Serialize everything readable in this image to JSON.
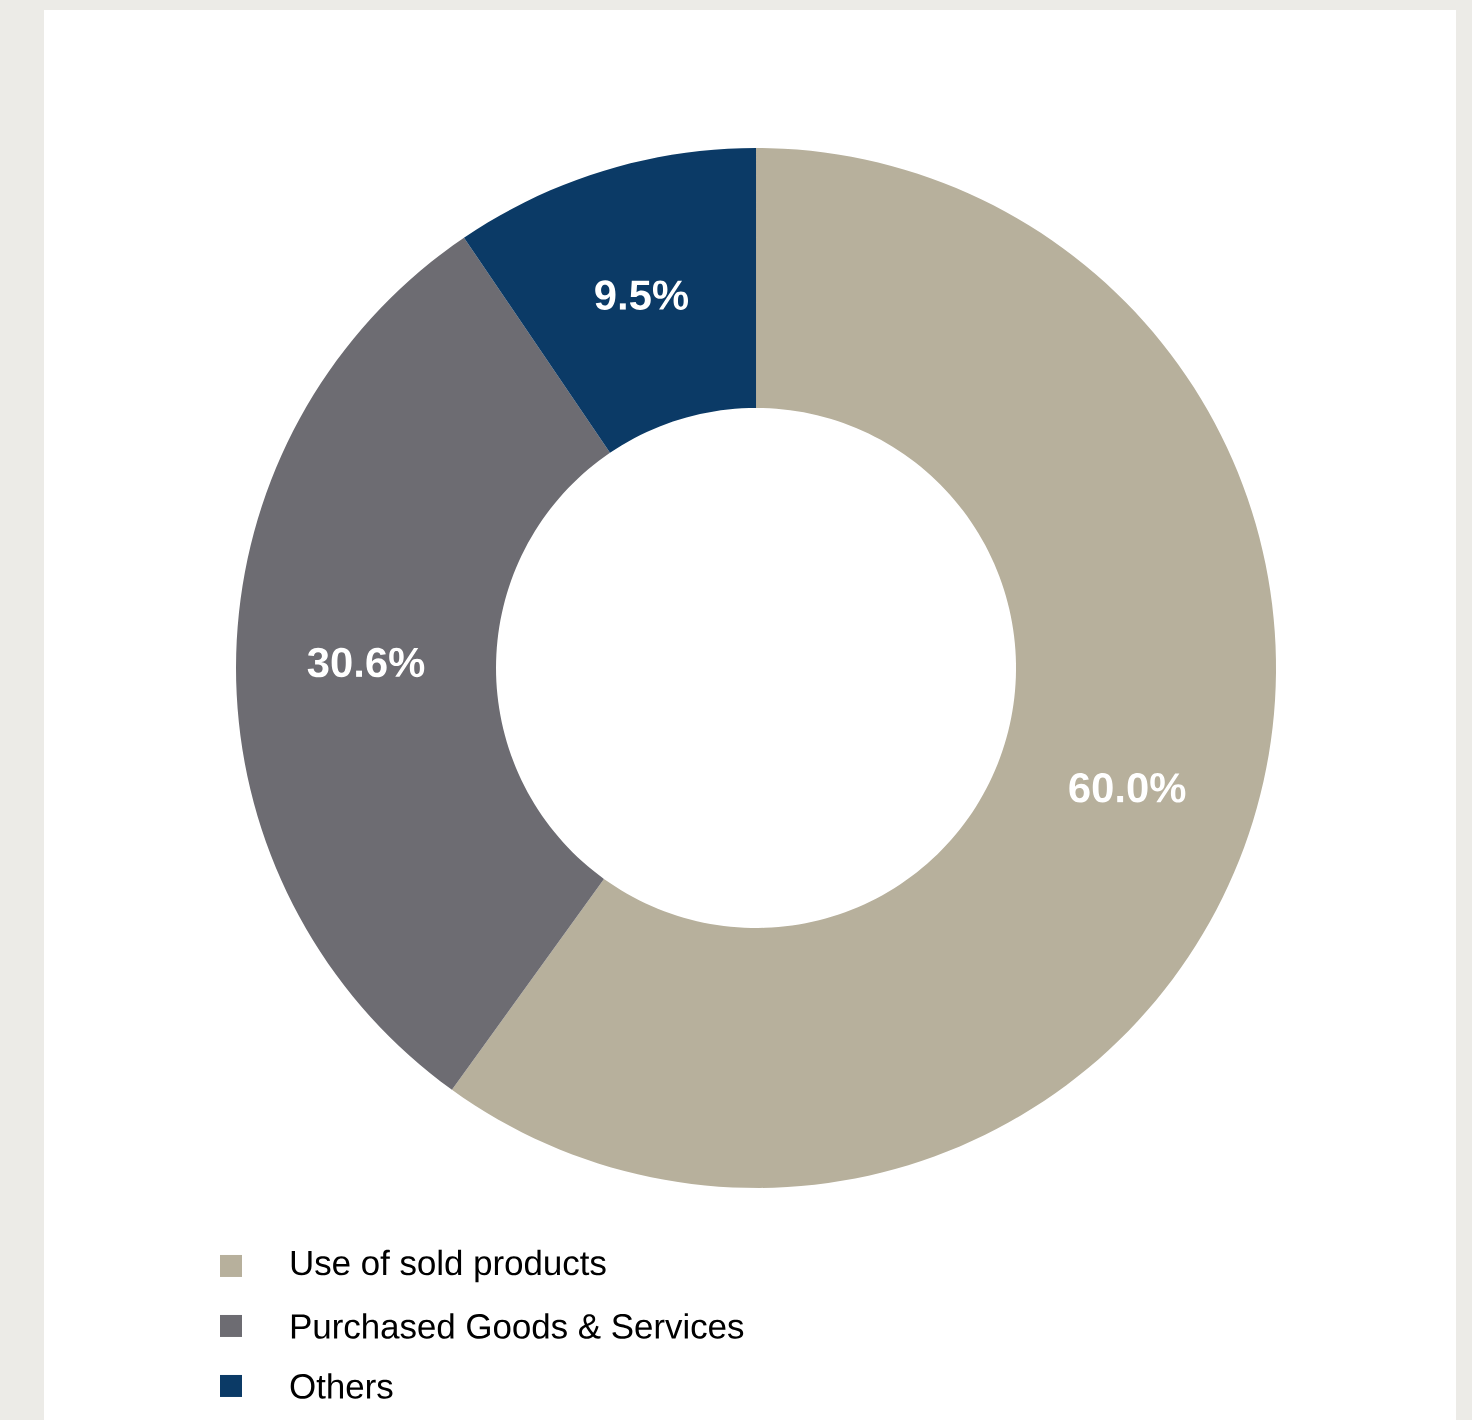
{
  "chart_data": {
    "type": "donut",
    "categories": [
      "Use of sold products",
      "Purchased Goods & Services",
      "Others"
    ],
    "values": [
      60.0,
      30.6,
      9.5
    ],
    "colors": [
      "#b7b09c",
      "#6d6c72",
      "#0b3a66"
    ],
    "value_labels": [
      "60.0%",
      "30.6%",
      "9.5%"
    ],
    "legend": "bottom"
  }
}
